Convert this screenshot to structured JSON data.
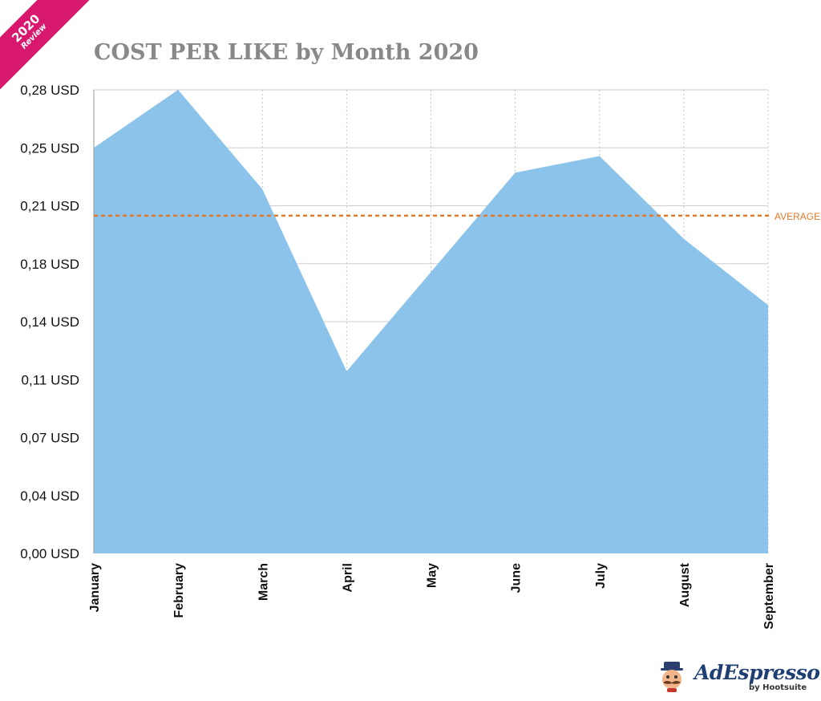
{
  "badge": {
    "year": "2020",
    "subtitle": "Review",
    "color": "#d8176f"
  },
  "chart_data": {
    "type": "area",
    "title": "COST PER LIKE by Month 2020",
    "categories": [
      "January",
      "February",
      "March",
      "April",
      "May",
      "June",
      "July",
      "August",
      "September"
    ],
    "values": [
      0.245,
      0.28,
      0.22,
      0.11,
      0.17,
      0.23,
      0.24,
      0.19,
      0.15
    ],
    "yticks": [
      0,
      0.035,
      0.07,
      0.105,
      0.14,
      0.175,
      0.21,
      0.245,
      0.28
    ],
    "ytick_labels": [
      "0,00 USD",
      "0,04 USD",
      "0,07 USD",
      "0,11 USD",
      "0,14 USD",
      "0,18 USD",
      "0,21 USD",
      "0,25 USD",
      "0,28 USD"
    ],
    "ylim": [
      0,
      0.28
    ],
    "average": 0.204,
    "average_label": "AVERAGE",
    "fill_color": "#8bc3eb",
    "average_color": "#e07b2c",
    "grid": true,
    "xlabel": "",
    "ylabel": ""
  },
  "logo": {
    "name": "AdEspresso",
    "byline": "by Hootsuite"
  }
}
